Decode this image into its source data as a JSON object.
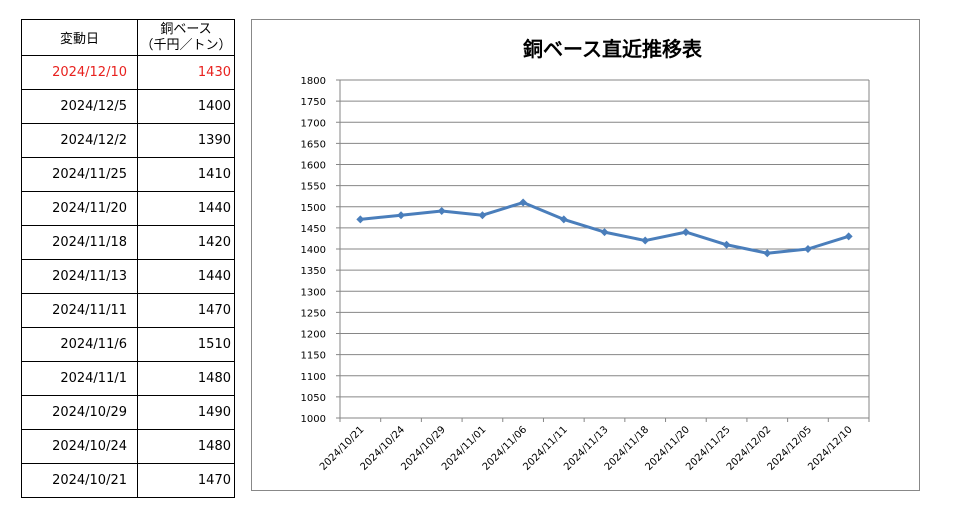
{
  "table": {
    "header_date": "変動日",
    "header_price_line1": "銅ベース",
    "header_price_line2": "（千円／トン）",
    "rows": [
      {
        "date": "2024/12/10",
        "price": "1430"
      },
      {
        "date": "2024/12/5",
        "price": "1400"
      },
      {
        "date": "2024/12/2",
        "price": "1390"
      },
      {
        "date": "2024/11/25",
        "price": "1410"
      },
      {
        "date": "2024/11/20",
        "price": "1440"
      },
      {
        "date": "2024/11/18",
        "price": "1420"
      },
      {
        "date": "2024/11/13",
        "price": "1440"
      },
      {
        "date": "2024/11/11",
        "price": "1470"
      },
      {
        "date": "2024/11/6",
        "price": "1510"
      },
      {
        "date": "2024/11/1",
        "price": "1480"
      },
      {
        "date": "2024/10/29",
        "price": "1490"
      },
      {
        "date": "2024/10/24",
        "price": "1480"
      },
      {
        "date": "2024/10/21",
        "price": "1470"
      }
    ],
    "latest_color": "#e8211e"
  },
  "chart_data": {
    "type": "line",
    "title": "銅ベース直近推移表",
    "xlabel": "",
    "ylabel": "",
    "categories": [
      "2024/10/21",
      "2024/10/24",
      "2024/10/29",
      "2024/11/01",
      "2024/11/06",
      "2024/11/11",
      "2024/11/13",
      "2024/11/18",
      "2024/11/20",
      "2024/11/25",
      "2024/12/02",
      "2024/12/05",
      "2024/12/10"
    ],
    "series": [
      {
        "values": [
          1470,
          1480,
          1490,
          1480,
          1510,
          1470,
          1440,
          1420,
          1440,
          1410,
          1390,
          1400,
          1430
        ],
        "color": "#4a7ebb",
        "marker": "diamond"
      }
    ],
    "ylim": [
      1000,
      1800
    ],
    "ytick_step": 50,
    "grid": true,
    "legend": "none"
  }
}
